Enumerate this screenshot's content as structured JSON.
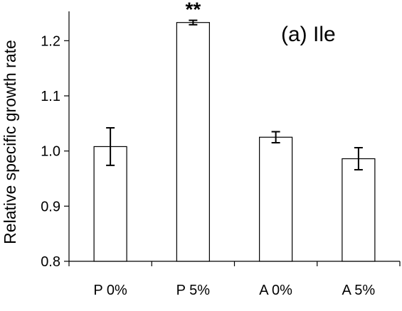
{
  "chart_data": {
    "type": "bar",
    "panel_label": "(a)  Ile",
    "ylabel": "Relative specific growth rate",
    "xlabel": "",
    "categories": [
      "P 0%",
      "P 5%",
      "A 0%",
      "A 5%"
    ],
    "values": [
      1.008,
      1.233,
      1.025,
      0.986
    ],
    "errors": [
      0.034,
      0.004,
      0.01,
      0.02
    ],
    "annotations": [
      "",
      "**",
      "",
      ""
    ],
    "ylim": [
      0.8,
      1.25
    ],
    "yticks": [
      0.8,
      0.9,
      1.0,
      1.1,
      1.2
    ],
    "ytick_labels": [
      "0.8",
      "0.9",
      "1.0",
      "1.1",
      "1.2"
    ],
    "bar_fill": "#ffffff",
    "bar_stroke": "#000000",
    "grid": false,
    "legend": "none"
  }
}
